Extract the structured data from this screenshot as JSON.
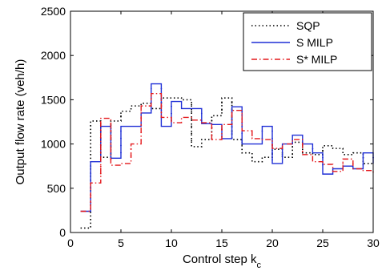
{
  "chart_data": {
    "type": "line",
    "step": true,
    "xlabel": "Control step k",
    "xlabel_subscript": "c",
    "ylabel": "Output flow rate  (veh/h)",
    "xlim": [
      0,
      30
    ],
    "ylim": [
      0,
      2500
    ],
    "xticks": [
      0,
      5,
      10,
      15,
      20,
      25,
      30
    ],
    "yticks": [
      0,
      500,
      1000,
      1500,
      2000,
      2500
    ],
    "grid": false,
    "legend_position": "top-right",
    "series": [
      {
        "name": "SQP",
        "color": "#000000",
        "style": "dotted",
        "x": [
          1,
          2,
          3,
          4,
          5,
          6,
          7,
          8,
          9,
          10,
          11,
          12,
          13,
          14,
          15,
          16,
          17,
          18,
          19,
          20,
          21,
          22,
          23,
          24,
          25,
          26,
          27,
          28,
          29,
          30
        ],
        "values": [
          50,
          1260,
          850,
          1260,
          1370,
          1430,
          1460,
          1400,
          1520,
          1520,
          1500,
          970,
          1050,
          1320,
          1520,
          1050,
          900,
          800,
          850,
          940,
          850,
          1020,
          900,
          880,
          980,
          950,
          880,
          900,
          780,
          780
        ]
      },
      {
        "name": "S MILP",
        "color": "#1f2fd6",
        "style": "solid",
        "x": [
          1,
          2,
          3,
          4,
          5,
          6,
          7,
          8,
          9,
          10,
          11,
          12,
          13,
          14,
          15,
          16,
          17,
          18,
          19,
          20,
          21,
          22,
          23,
          24,
          25,
          26,
          27,
          28,
          29,
          30
        ],
        "values": [
          240,
          800,
          1200,
          840,
          1200,
          1200,
          1350,
          1680,
          1200,
          1480,
          1400,
          1400,
          1230,
          1220,
          1060,
          1420,
          1000,
          1000,
          1200,
          780,
          1000,
          1100,
          1000,
          900,
          660,
          720,
          750,
          720,
          900,
          780
        ]
      },
      {
        "name": "S* MILP",
        "color": "#e4181c",
        "style": "dash-dot",
        "x": [
          1,
          2,
          3,
          4,
          5,
          6,
          7,
          8,
          9,
          10,
          11,
          12,
          13,
          14,
          15,
          16,
          17,
          18,
          19,
          20,
          21,
          22,
          23,
          24,
          25,
          26,
          27,
          28,
          29,
          30
        ],
        "values": [
          240,
          560,
          1290,
          760,
          780,
          1000,
          1430,
          1570,
          1300,
          1240,
          1300,
          1270,
          1240,
          1050,
          1220,
          1380,
          1150,
          1060,
          1050,
          950,
          1000,
          1050,
          880,
          800,
          770,
          690,
          830,
          720,
          700,
          650
        ]
      }
    ]
  }
}
